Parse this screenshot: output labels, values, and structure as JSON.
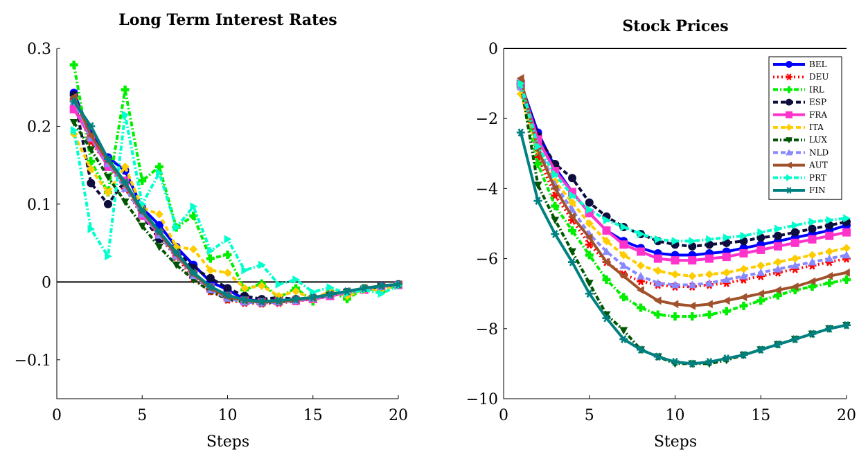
{
  "steps": [
    1,
    2,
    3,
    4,
    5,
    6,
    7,
    8,
    9,
    10,
    11,
    12,
    13,
    14,
    15,
    16,
    17,
    18,
    19,
    20
  ],
  "chart_data": [
    {
      "type": "line",
      "title": "Long Term Interest Rates",
      "xlabel": "Steps",
      "ylabel": "",
      "xlim": [
        0,
        20
      ],
      "ylim": [
        -0.15,
        0.3
      ],
      "xticks": [
        "0",
        "5",
        "10",
        "15",
        "20"
      ],
      "yticks": [
        "0.3",
        "0.2",
        "0.1",
        "0",
        "−0.1"
      ],
      "ytick_values": [
        0.3,
        0.2,
        0.1,
        0,
        -0.1
      ],
      "zero_line": true,
      "series": [
        {
          "name": "BEL",
          "values": [
            0.243,
            0.19,
            0.16,
            0.143,
            0.095,
            0.073,
            0.045,
            0.022,
            0.0,
            -0.01,
            -0.022,
            -0.025,
            -0.025,
            -0.023,
            -0.022,
            -0.018,
            -0.013,
            -0.009,
            -0.005,
            -0.003
          ]
        },
        {
          "name": "DEU",
          "values": [
            0.235,
            0.18,
            0.15,
            0.12,
            0.085,
            0.058,
            0.032,
            0.005,
            -0.012,
            -0.023,
            -0.027,
            -0.028,
            -0.027,
            -0.025,
            -0.022,
            -0.018,
            -0.014,
            -0.01,
            -0.006,
            -0.004
          ]
        },
        {
          "name": "IRL",
          "values": [
            0.279,
            0.155,
            0.115,
            0.247,
            0.13,
            0.148,
            0.07,
            0.085,
            0.03,
            0.035,
            -0.01,
            -0.002,
            -0.02,
            -0.008,
            -0.025,
            -0.012,
            -0.022,
            -0.008,
            -0.012,
            -0.004
          ]
        },
        {
          "name": "ESP",
          "values": [
            0.24,
            0.127,
            0.1,
            0.13,
            0.085,
            0.055,
            0.04,
            0.018,
            0.005,
            -0.008,
            -0.018,
            -0.022,
            -0.02,
            -0.022,
            -0.02,
            -0.017,
            -0.013,
            -0.009,
            -0.006,
            -0.003
          ]
        },
        {
          "name": "FRA",
          "values": [
            0.222,
            0.185,
            0.148,
            0.13,
            0.085,
            0.062,
            0.035,
            0.01,
            -0.007,
            -0.018,
            -0.024,
            -0.026,
            -0.025,
            -0.024,
            -0.022,
            -0.018,
            -0.014,
            -0.01,
            -0.006,
            -0.004
          ]
        },
        {
          "name": "ITA",
          "values": [
            0.19,
            0.145,
            0.115,
            0.148,
            0.095,
            0.087,
            0.045,
            0.042,
            0.015,
            0.012,
            -0.008,
            -0.005,
            -0.018,
            -0.012,
            -0.022,
            -0.012,
            -0.018,
            -0.01,
            -0.01,
            -0.004
          ]
        },
        {
          "name": "LUX",
          "values": [
            0.205,
            0.17,
            0.135,
            0.103,
            0.072,
            0.045,
            0.022,
            0.003,
            -0.012,
            -0.022,
            -0.026,
            -0.027,
            -0.026,
            -0.024,
            -0.021,
            -0.017,
            -0.013,
            -0.009,
            -0.006,
            -0.004
          ]
        },
        {
          "name": "NLD",
          "values": [
            0.232,
            0.185,
            0.152,
            0.12,
            0.087,
            0.06,
            0.033,
            0.008,
            -0.01,
            -0.021,
            -0.026,
            -0.027,
            -0.026,
            -0.024,
            -0.021,
            -0.017,
            -0.013,
            -0.009,
            -0.006,
            -0.004
          ]
        },
        {
          "name": "AUT",
          "values": [
            0.238,
            0.188,
            0.155,
            0.125,
            0.09,
            0.063,
            0.035,
            0.01,
            -0.008,
            -0.019,
            -0.024,
            -0.026,
            -0.025,
            -0.023,
            -0.02,
            -0.016,
            -0.012,
            -0.008,
            -0.005,
            -0.003
          ]
        },
        {
          "name": "PRT",
          "values": [
            0.195,
            0.068,
            0.033,
            0.215,
            0.1,
            0.14,
            0.07,
            0.097,
            0.04,
            0.055,
            0.015,
            0.022,
            -0.003,
            0.003,
            -0.013,
            -0.007,
            -0.015,
            -0.01,
            -0.015,
            -0.005
          ]
        },
        {
          "name": "FIN",
          "values": [
            0.232,
            0.2,
            0.158,
            0.128,
            0.092,
            0.065,
            0.038,
            0.012,
            -0.006,
            -0.017,
            -0.023,
            -0.025,
            -0.024,
            -0.022,
            -0.02,
            -0.016,
            -0.012,
            -0.008,
            -0.005,
            -0.003
          ]
        }
      ]
    },
    {
      "type": "line",
      "title": "Stock Prices",
      "xlabel": "Steps",
      "ylabel": "",
      "xlim": [
        0,
        20
      ],
      "ylim": [
        -10,
        0
      ],
      "xticks": [
        "0",
        "5",
        "10",
        "15",
        "20"
      ],
      "yticks": [
        "0",
        "−2",
        "−4",
        "−6",
        "−8",
        "−10"
      ],
      "ytick_values": [
        0,
        -2,
        -4,
        -6,
        -8,
        -10
      ],
      "zero_line": true,
      "legend": "top-right",
      "series": [
        {
          "name": "BEL",
          "values": [
            -1.0,
            -2.4,
            -3.4,
            -4.1,
            -4.7,
            -5.2,
            -5.5,
            -5.7,
            -5.85,
            -5.9,
            -5.9,
            -5.85,
            -5.8,
            -5.7,
            -5.6,
            -5.5,
            -5.4,
            -5.3,
            -5.2,
            -5.05
          ]
        },
        {
          "name": "DEU",
          "values": [
            -1.05,
            -3.1,
            -4.2,
            -4.9,
            -5.6,
            -6.1,
            -6.45,
            -6.65,
            -6.75,
            -6.8,
            -6.8,
            -6.75,
            -6.7,
            -6.6,
            -6.5,
            -6.4,
            -6.3,
            -6.2,
            -6.1,
            -6.0
          ]
        },
        {
          "name": "IRL",
          "values": [
            -1.1,
            -3.3,
            -4.5,
            -5.2,
            -5.9,
            -6.6,
            -7.1,
            -7.4,
            -7.6,
            -7.65,
            -7.65,
            -7.6,
            -7.5,
            -7.35,
            -7.2,
            -7.05,
            -6.9,
            -6.8,
            -6.7,
            -6.6
          ]
        },
        {
          "name": "ESP",
          "values": [
            -1.0,
            -2.5,
            -3.3,
            -3.7,
            -4.4,
            -4.8,
            -5.1,
            -5.3,
            -5.5,
            -5.6,
            -5.65,
            -5.6,
            -5.55,
            -5.5,
            -5.4,
            -5.35,
            -5.25,
            -5.15,
            -5.05,
            -4.95
          ]
        },
        {
          "name": "FRA",
          "values": [
            -1.0,
            -2.6,
            -3.5,
            -4.1,
            -4.7,
            -5.2,
            -5.6,
            -5.8,
            -6.0,
            -6.05,
            -6.05,
            -6.0,
            -5.95,
            -5.85,
            -5.75,
            -5.65,
            -5.55,
            -5.45,
            -5.35,
            -5.25
          ]
        },
        {
          "name": "ITA",
          "values": [
            -1.3,
            -2.9,
            -3.8,
            -4.4,
            -5.0,
            -5.5,
            -5.9,
            -6.2,
            -6.35,
            -6.45,
            -6.5,
            -6.45,
            -6.4,
            -6.3,
            -6.2,
            -6.1,
            -6.0,
            -5.9,
            -5.8,
            -5.7
          ]
        },
        {
          "name": "LUX",
          "values": [
            -1.0,
            -3.9,
            -4.9,
            -5.8,
            -6.7,
            -7.6,
            -8.05,
            -8.6,
            -8.8,
            -9.0,
            -9.0,
            -9.0,
            -8.9,
            -8.75,
            -8.6,
            -8.45,
            -8.3,
            -8.15,
            -8.0,
            -7.9
          ]
        },
        {
          "name": "NLD",
          "values": [
            -1.1,
            -2.8,
            -3.9,
            -4.6,
            -5.3,
            -5.8,
            -6.2,
            -6.5,
            -6.7,
            -6.75,
            -6.75,
            -6.7,
            -6.6,
            -6.5,
            -6.4,
            -6.3,
            -6.2,
            -6.1,
            -6.0,
            -5.9
          ]
        },
        {
          "name": "AUT",
          "values": [
            -0.85,
            -2.9,
            -4.0,
            -4.8,
            -5.4,
            -6.1,
            -6.5,
            -6.9,
            -7.2,
            -7.3,
            -7.35,
            -7.3,
            -7.2,
            -7.1,
            -7.0,
            -6.9,
            -6.8,
            -6.65,
            -6.5,
            -6.4
          ]
        },
        {
          "name": "PRT",
          "values": [
            -1.0,
            -2.8,
            -3.6,
            -4.2,
            -4.6,
            -4.9,
            -5.1,
            -5.3,
            -5.45,
            -5.5,
            -5.5,
            -5.45,
            -5.4,
            -5.35,
            -5.25,
            -5.15,
            -5.05,
            -4.95,
            -4.9,
            -4.85
          ]
        },
        {
          "name": "FIN",
          "values": [
            -2.4,
            -4.35,
            -5.3,
            -6.1,
            -7.0,
            -7.7,
            -8.3,
            -8.6,
            -8.8,
            -8.95,
            -9.0,
            -8.95,
            -8.85,
            -8.75,
            -8.6,
            -8.45,
            -8.3,
            -8.15,
            -8.0,
            -7.9
          ]
        }
      ]
    }
  ],
  "series_styles": {
    "BEL": {
      "color": "#0000ff",
      "dash": "solid",
      "marker": "circle"
    },
    "DEU": {
      "color": "#ff0000",
      "dash": "dotted",
      "marker": "star"
    },
    "IRL": {
      "color": "#00ee00",
      "dash": "dashdot",
      "marker": "plus"
    },
    "ESP": {
      "color": "#0d0d3f",
      "dash": "dashed",
      "marker": "circle"
    },
    "FRA": {
      "color": "#ff33cc",
      "dash": "solid",
      "marker": "square"
    },
    "ITA": {
      "color": "#ffcc00",
      "dash": "dashed",
      "marker": "diamond"
    },
    "LUX": {
      "color": "#005500",
      "dash": "dashdot",
      "marker": "triangle-down"
    },
    "NLD": {
      "color": "#8888ff",
      "dash": "dashed",
      "marker": "triangle-up"
    },
    "AUT": {
      "color": "#a0522d",
      "dash": "solid",
      "marker": "triangle-left"
    },
    "PRT": {
      "color": "#00ffcc",
      "dash": "dashdot",
      "marker": "triangle-right"
    },
    "FIN": {
      "color": "#008080",
      "dash": "solid",
      "marker": "star"
    }
  }
}
